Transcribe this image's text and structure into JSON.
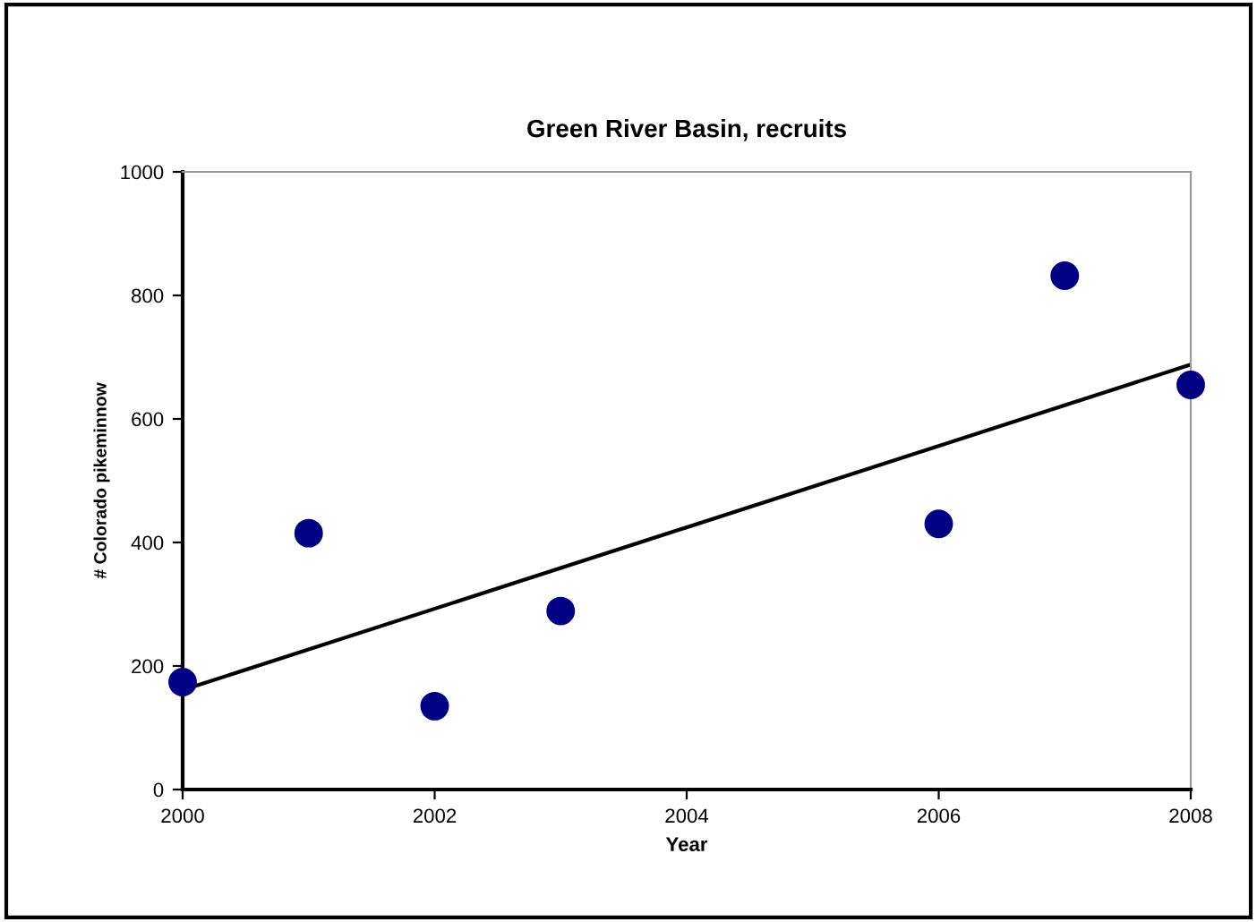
{
  "chart_data": {
    "type": "scatter",
    "title": "Green River Basin, recruits",
    "xlabel": "Year",
    "ylabel": "# Colorado pikeminnow",
    "xlim": [
      2000,
      2008
    ],
    "xticks": [
      2000,
      2002,
      2004,
      2006,
      2008
    ],
    "ylim": [
      0,
      1000
    ],
    "yticks": [
      0,
      200,
      400,
      600,
      800,
      1000
    ],
    "grid": false,
    "legend": false,
    "series": [
      {
        "marker": "circle",
        "color": "#000080",
        "x": [
          2000,
          2001,
          2002,
          2003,
          2006,
          2007,
          2008
        ],
        "values": [
          174,
          415,
          135,
          289,
          430,
          832,
          655
        ]
      },
      {
        "type": "line",
        "color": "#000000",
        "x": [
          2000,
          2008
        ],
        "values": [
          161,
          688
        ],
        "line_style": "solid",
        "marker": "none"
      }
    ]
  }
}
